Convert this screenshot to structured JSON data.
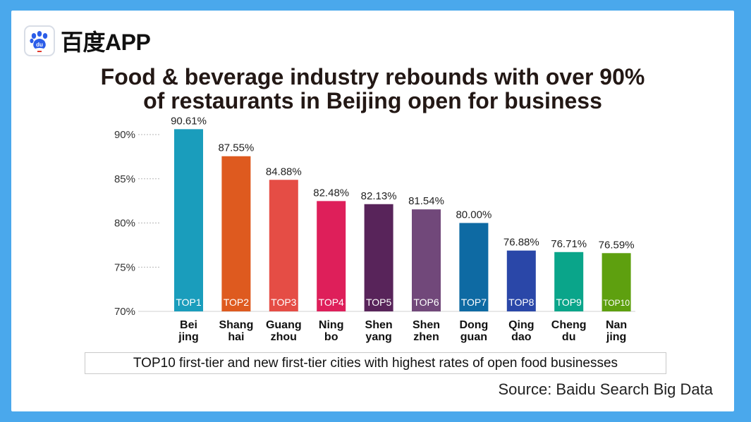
{
  "brand": {
    "name": "百度APP",
    "icon": "baidu-paw-icon"
  },
  "title_lines": [
    "Food & beverage industry rebounds with over 90%",
    "of restaurants in Beijing open for business"
  ],
  "caption": "TOP10 first-tier and new first-tier cities with highest rates of open food businesses",
  "source": "Source: Baidu Search Big Data",
  "chart_data": {
    "type": "bar",
    "ylim": [
      70,
      90
    ],
    "yticks": [
      "90%",
      "85%",
      "80%",
      "75%",
      "70%"
    ],
    "grid": "dotted horizontal",
    "categories": [
      [
        "Bei",
        "jing"
      ],
      [
        "Shang",
        "hai"
      ],
      [
        "Guang",
        "zhou"
      ],
      [
        "Ning",
        "bo"
      ],
      [
        "Shen",
        "yang"
      ],
      [
        "Shen",
        "zhen"
      ],
      [
        "Dong",
        "guan"
      ],
      [
        "Qing",
        "dao"
      ],
      [
        "Cheng",
        "du"
      ],
      [
        "Nan",
        "jing"
      ]
    ],
    "values": [
      90.61,
      87.55,
      84.88,
      82.48,
      82.13,
      81.54,
      80.0,
      76.88,
      76.71,
      76.59
    ],
    "value_labels": [
      "90.61%",
      "87.55%",
      "84.88%",
      "82.48%",
      "82.13%",
      "81.54%",
      "80.00%",
      "76.88%",
      "76.71%",
      "76.59%"
    ],
    "rank_labels": [
      "TOP1",
      "TOP2",
      "TOP3",
      "TOP4",
      "TOP5",
      "TOP6",
      "TOP7",
      "TOP8",
      "TOP9",
      "TOP10"
    ],
    "colors": [
      "#1a9dbc",
      "#de5a1f",
      "#e54d45",
      "#de1f5a",
      "#58245a",
      "#71487a",
      "#0e6aa3",
      "#2a47a8",
      "#0aa58a",
      "#5ea00f"
    ]
  }
}
